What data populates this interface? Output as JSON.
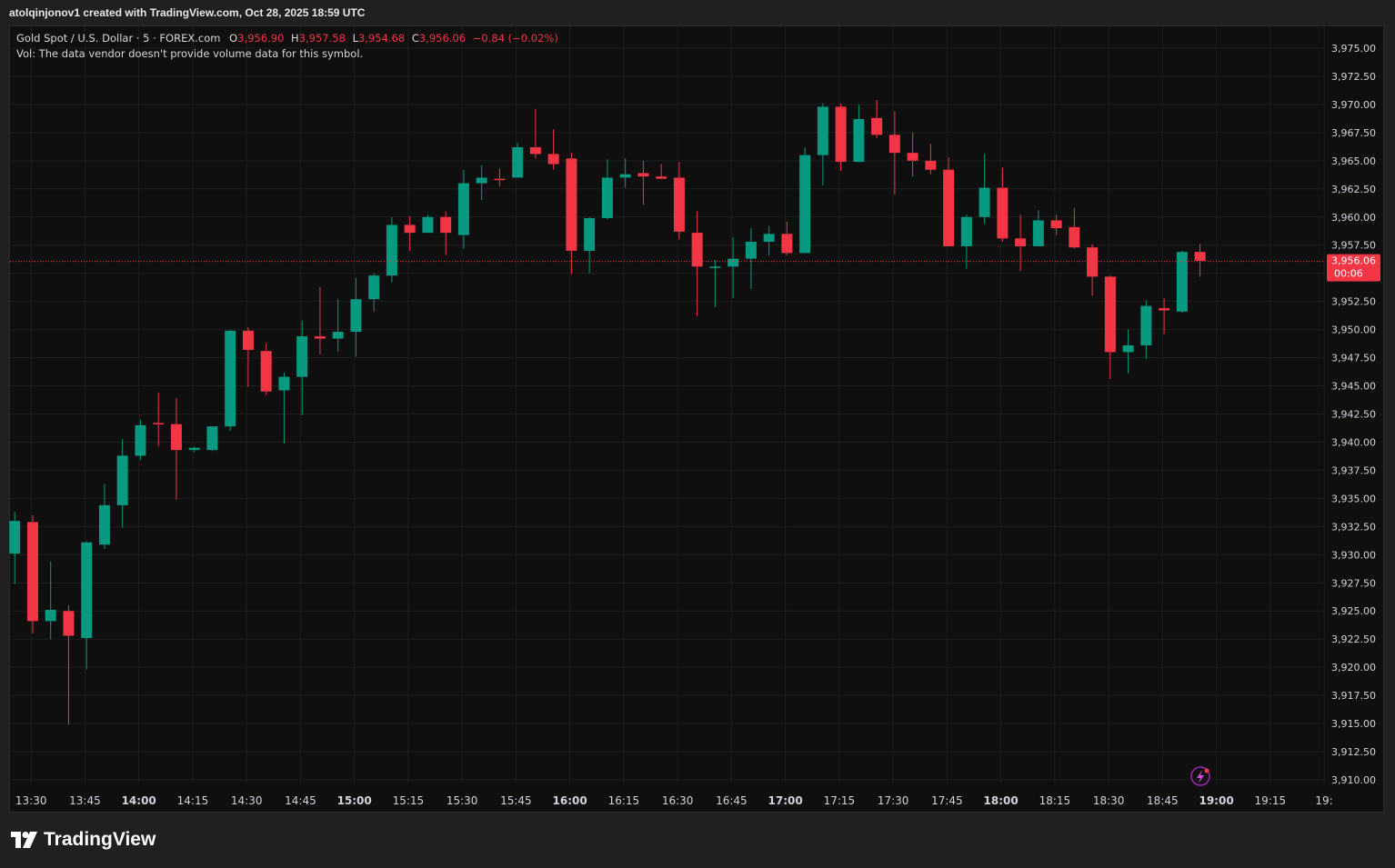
{
  "credit": "atolqinjonov1 created with TradingView.com, Oct 28, 2025 18:59 UTC",
  "legend": {
    "symbol": "Gold Spot / U.S. Dollar · 5 · FOREX.com",
    "o_label": "O",
    "o_value": "3,956.90",
    "h_label": "H",
    "h_value": "3,957.58",
    "l_label": "L",
    "l_value": "3,954.68",
    "c_label": "C",
    "c_value": "3,956.06",
    "change": "−0.84 (−0.02%)"
  },
  "vol_text": "Vol: The data vendor doesn't provide volume data for this symbol.",
  "brand": "TradingView",
  "colors": {
    "up": "#089981",
    "down": "#f23645",
    "background": "#0f0f0f",
    "grid": "#1e1e1e",
    "text": "#d1d4dc"
  },
  "chart_data": {
    "type": "candlestick",
    "interval_minutes": 5,
    "ylim": [
      3909,
      3977
    ],
    "y_ticks": [
      "3,910.00",
      "3,912.50",
      "3,915.00",
      "3,917.50",
      "3,920.00",
      "3,922.50",
      "3,925.00",
      "3,927.50",
      "3,930.00",
      "3,932.50",
      "3,935.00",
      "3,937.50",
      "3,940.00",
      "3,942.50",
      "3,945.00",
      "3,947.50",
      "3,950.00",
      "3,952.50",
      "3,955.00",
      "3,957.50",
      "3,960.00",
      "3,962.50",
      "3,965.00",
      "3,967.50",
      "3,970.00",
      "3,972.50",
      "3,975.00"
    ],
    "x_ticks": [
      "13:30",
      "13:45",
      "14:00",
      "14:15",
      "14:30",
      "14:45",
      "15:00",
      "15:15",
      "15:30",
      "15:45",
      "16:00",
      "16:15",
      "16:30",
      "16:45",
      "17:00",
      "17:15",
      "17:30",
      "17:45",
      "18:00",
      "18:15",
      "18:30",
      "18:45",
      "19:00",
      "19:15",
      "19:"
    ],
    "last_price": "3,956.06",
    "last_price_value": 3956.06,
    "countdown": "00:06",
    "candles": [
      {
        "time": "13:30",
        "o": 3930.1,
        "h": 3933.8,
        "l": 3927.4,
        "c": 3933.0
      },
      {
        "time": "13:35",
        "o": 3932.9,
        "h": 3933.5,
        "l": 3923.0,
        "c": 3924.1
      },
      {
        "time": "13:40",
        "o": 3924.1,
        "h": 3929.4,
        "l": 3922.5,
        "c": 3925.1
      },
      {
        "time": "13:45",
        "o": 3925.0,
        "h": 3925.5,
        "l": 3914.9,
        "c": 3922.8
      },
      {
        "time": "13:50",
        "o": 3922.6,
        "h": 3931.2,
        "l": 3919.8,
        "c": 3931.1
      },
      {
        "time": "13:55",
        "o": 3930.9,
        "h": 3936.3,
        "l": 3930.5,
        "c": 3934.4
      },
      {
        "time": "14:00",
        "o": 3934.4,
        "h": 3940.3,
        "l": 3932.4,
        "c": 3938.8
      },
      {
        "time": "14:05",
        "o": 3938.8,
        "h": 3942.0,
        "l": 3938.4,
        "c": 3941.5
      },
      {
        "time": "14:10",
        "o": 3941.7,
        "h": 3944.4,
        "l": 3939.6,
        "c": 3941.6
      },
      {
        "time": "14:15",
        "o": 3941.6,
        "h": 3943.9,
        "l": 3934.9,
        "c": 3939.3
      },
      {
        "time": "14:20",
        "o": 3939.3,
        "h": 3939.6,
        "l": 3939.1,
        "c": 3939.5
      },
      {
        "time": "14:25",
        "o": 3939.3,
        "h": 3941.4,
        "l": 3939.2,
        "c": 3941.4
      },
      {
        "time": "14:30",
        "o": 3941.4,
        "h": 3950.0,
        "l": 3941.0,
        "c": 3949.9
      },
      {
        "time": "14:35",
        "o": 3949.9,
        "h": 3950.2,
        "l": 3944.9,
        "c": 3948.2
      },
      {
        "time": "14:40",
        "o": 3948.1,
        "h": 3948.8,
        "l": 3944.2,
        "c": 3944.5
      },
      {
        "time": "14:45",
        "o": 3944.6,
        "h": 3946.2,
        "l": 3939.9,
        "c": 3945.8
      },
      {
        "time": "14:50",
        "o": 3945.8,
        "h": 3950.8,
        "l": 3942.4,
        "c": 3949.4
      },
      {
        "time": "14:55",
        "o": 3949.4,
        "h": 3953.8,
        "l": 3947.8,
        "c": 3949.2
      },
      {
        "time": "15:00",
        "o": 3949.2,
        "h": 3952.7,
        "l": 3948.0,
        "c": 3949.8
      },
      {
        "time": "15:05",
        "o": 3949.8,
        "h": 3954.6,
        "l": 3947.6,
        "c": 3952.7
      },
      {
        "time": "15:10",
        "o": 3952.7,
        "h": 3955.0,
        "l": 3951.6,
        "c": 3954.8
      },
      {
        "time": "15:15",
        "o": 3954.8,
        "h": 3960.0,
        "l": 3954.2,
        "c": 3959.3
      },
      {
        "time": "15:20",
        "o": 3959.3,
        "h": 3960.1,
        "l": 3957.0,
        "c": 3958.6
      },
      {
        "time": "15:25",
        "o": 3958.6,
        "h": 3960.2,
        "l": 3958.6,
        "c": 3960.0
      },
      {
        "time": "15:30",
        "o": 3960.0,
        "h": 3960.5,
        "l": 3956.6,
        "c": 3958.6
      },
      {
        "time": "15:35",
        "o": 3958.4,
        "h": 3964.2,
        "l": 3957.2,
        "c": 3963.0
      },
      {
        "time": "15:40",
        "o": 3963.0,
        "h": 3964.6,
        "l": 3961.5,
        "c": 3963.5
      },
      {
        "time": "15:45",
        "o": 3963.4,
        "h": 3964.3,
        "l": 3962.7,
        "c": 3963.3
      },
      {
        "time": "15:50",
        "o": 3963.5,
        "h": 3966.6,
        "l": 3963.5,
        "c": 3966.2
      },
      {
        "time": "15:55",
        "o": 3966.2,
        "h": 3969.6,
        "l": 3965.2,
        "c": 3965.6
      },
      {
        "time": "16:00",
        "o": 3965.6,
        "h": 3967.8,
        "l": 3964.2,
        "c": 3964.7
      },
      {
        "time": "16:05",
        "o": 3965.2,
        "h": 3965.7,
        "l": 3954.9,
        "c": 3957.0
      },
      {
        "time": "16:10",
        "o": 3957.0,
        "h": 3960.0,
        "l": 3955.0,
        "c": 3959.9
      },
      {
        "time": "16:15",
        "o": 3959.9,
        "h": 3965.1,
        "l": 3959.8,
        "c": 3963.5
      },
      {
        "time": "16:20",
        "o": 3963.5,
        "h": 3965.2,
        "l": 3962.6,
        "c": 3963.8
      },
      {
        "time": "16:25",
        "o": 3963.9,
        "h": 3965.0,
        "l": 3961.1,
        "c": 3963.6
      },
      {
        "time": "16:30",
        "o": 3963.6,
        "h": 3964.7,
        "l": 3963.4,
        "c": 3963.4
      },
      {
        "time": "16:35",
        "o": 3963.5,
        "h": 3964.9,
        "l": 3958.0,
        "c": 3958.7
      },
      {
        "time": "16:40",
        "o": 3958.6,
        "h": 3960.5,
        "l": 3951.2,
        "c": 3955.6
      },
      {
        "time": "16:45",
        "o": 3955.6,
        "h": 3956.2,
        "l": 3952.0,
        "c": 3955.6
      },
      {
        "time": "16:50",
        "o": 3955.6,
        "h": 3958.2,
        "l": 3952.8,
        "c": 3956.3
      },
      {
        "time": "16:55",
        "o": 3956.3,
        "h": 3959.0,
        "l": 3953.6,
        "c": 3957.8
      },
      {
        "time": "17:00",
        "o": 3957.8,
        "h": 3959.2,
        "l": 3956.6,
        "c": 3958.5
      },
      {
        "time": "17:05",
        "o": 3958.5,
        "h": 3959.6,
        "l": 3956.6,
        "c": 3956.8
      },
      {
        "time": "17:10",
        "o": 3956.8,
        "h": 3966.2,
        "l": 3956.8,
        "c": 3965.5
      },
      {
        "time": "17:15",
        "o": 3965.5,
        "h": 3970.1,
        "l": 3962.8,
        "c": 3969.8
      },
      {
        "time": "17:20",
        "o": 3969.8,
        "h": 3970.1,
        "l": 3964.1,
        "c": 3964.9
      },
      {
        "time": "17:25",
        "o": 3964.9,
        "h": 3970.0,
        "l": 3964.9,
        "c": 3968.7
      },
      {
        "time": "17:30",
        "o": 3968.8,
        "h": 3970.4,
        "l": 3967.0,
        "c": 3967.3
      },
      {
        "time": "17:35",
        "o": 3967.3,
        "h": 3969.4,
        "l": 3962.0,
        "c": 3965.7
      },
      {
        "time": "17:40",
        "o": 3965.7,
        "h": 3967.5,
        "l": 3963.6,
        "c": 3965.0
      },
      {
        "time": "17:45",
        "o": 3965.0,
        "h": 3966.5,
        "l": 3963.8,
        "c": 3964.2
      },
      {
        "time": "17:50",
        "o": 3964.2,
        "h": 3965.3,
        "l": 3957.4,
        "c": 3957.4
      },
      {
        "time": "17:55",
        "o": 3957.4,
        "h": 3960.2,
        "l": 3955.4,
        "c": 3960.0
      },
      {
        "time": "18:00",
        "o": 3960.0,
        "h": 3965.6,
        "l": 3959.4,
        "c": 3962.6
      },
      {
        "time": "18:05",
        "o": 3962.6,
        "h": 3964.4,
        "l": 3957.8,
        "c": 3958.1
      },
      {
        "time": "18:10",
        "o": 3958.1,
        "h": 3960.2,
        "l": 3955.2,
        "c": 3957.4
      },
      {
        "time": "18:15",
        "o": 3957.4,
        "h": 3960.6,
        "l": 3957.4,
        "c": 3959.7
      },
      {
        "time": "18:20",
        "o": 3959.7,
        "h": 3960.2,
        "l": 3958.4,
        "c": 3959.0
      },
      {
        "time": "18:25",
        "o": 3959.1,
        "h": 3960.8,
        "l": 3957.2,
        "c": 3957.3
      },
      {
        "time": "18:30",
        "o": 3957.3,
        "h": 3957.6,
        "l": 3953.0,
        "c": 3954.7
      },
      {
        "time": "18:35",
        "o": 3954.7,
        "h": 3954.8,
        "l": 3945.6,
        "c": 3948.0
      },
      {
        "time": "18:40",
        "o": 3948.0,
        "h": 3950.0,
        "l": 3946.1,
        "c": 3948.6
      },
      {
        "time": "18:45",
        "o": 3948.6,
        "h": 3952.6,
        "l": 3947.4,
        "c": 3952.1
      },
      {
        "time": "18:50",
        "o": 3951.9,
        "h": 3952.8,
        "l": 3949.6,
        "c": 3951.7
      },
      {
        "time": "18:55",
        "o": 3951.6,
        "h": 3957.0,
        "l": 3951.5,
        "c": 3956.9
      },
      {
        "time": "19:00",
        "o": 3956.9,
        "h": 3957.6,
        "l": 3954.7,
        "c": 3956.1
      }
    ]
  }
}
